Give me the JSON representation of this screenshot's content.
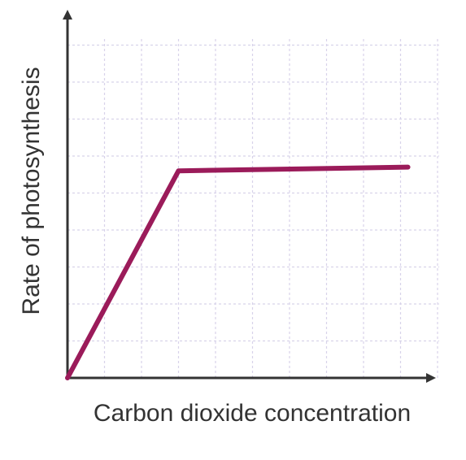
{
  "chart_data": {
    "type": "line",
    "title": "",
    "xlabel": "Carbon dioxide concentration",
    "ylabel": "Rate of photosynthesis",
    "xlim": [
      0,
      10
    ],
    "ylim": [
      0,
      10
    ],
    "grid": true,
    "series": [
      {
        "x": [
          0,
          3,
          9.2
        ],
        "y": [
          0,
          5.6,
          5.7
        ]
      }
    ]
  },
  "colors": {
    "line": "#9b1b5a",
    "axis": "#333333",
    "grid": "#d8d3ea"
  }
}
